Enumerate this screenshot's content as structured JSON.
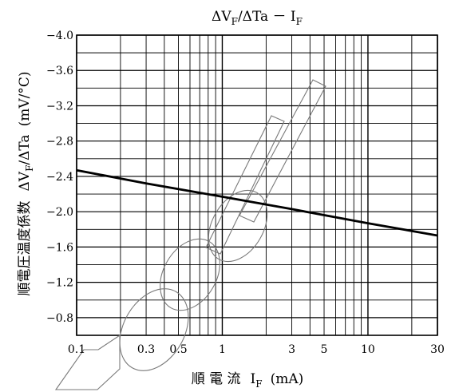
{
  "chart_data": {
    "type": "line",
    "title": "ΔV_F/ΔTa － I_F",
    "title_parts": {
      "main": "ΔV",
      "sub": "F",
      "rest": "/ΔTa － I",
      "sub2": "F"
    },
    "xlabel": "順　電　流　I_F　(mA)",
    "xlabel_parts": {
      "jp": "順 電 流",
      "var": "I",
      "sub": "F",
      "unit": "(mA)"
    },
    "ylabel": "順電圧温度係数　ΔV_F/ΔTa　(mV/°C)",
    "ylabel_parts": {
      "jp": "順電圧温度係数",
      "var": "ΔV",
      "sub": "F",
      "rest": "/ΔTa",
      "unit": "(mV/°C)"
    },
    "x_scale": "log",
    "xlim": [
      0.1,
      30
    ],
    "ylim": [
      -0.6,
      -4.0
    ],
    "x_ticks": [
      {
        "value": 0.1,
        "label": "0.1"
      },
      {
        "value": 0.3,
        "label": "0.3"
      },
      {
        "value": 0.5,
        "label": "0.5"
      },
      {
        "value": 1,
        "label": "1"
      },
      {
        "value": 3,
        "label": "3"
      },
      {
        "value": 5,
        "label": "5"
      },
      {
        "value": 10,
        "label": "10"
      },
      {
        "value": 30,
        "label": "30"
      }
    ],
    "y_ticks": [
      {
        "value": -4.0,
        "label": "−4.0"
      },
      {
        "value": -3.6,
        "label": "−3.6"
      },
      {
        "value": -3.2,
        "label": "−3.2"
      },
      {
        "value": -2.8,
        "label": "−2.8"
      },
      {
        "value": -2.4,
        "label": "−2.4"
      },
      {
        "value": -2.0,
        "label": "−2.0"
      },
      {
        "value": -1.6,
        "label": "−1.6"
      },
      {
        "value": -1.2,
        "label": "−1.2"
      },
      {
        "value": -0.8,
        "label": "−0.8"
      }
    ],
    "grid": true,
    "series": [
      {
        "x": [
          0.1,
          0.3,
          1,
          3,
          10,
          30
        ],
        "y": [
          -2.47,
          -2.32,
          -2.17,
          -2.03,
          -1.87,
          -1.73
        ]
      }
    ]
  },
  "colors": {
    "line": "#000000",
    "grid": "#000000",
    "watermark": "#7a7a7a"
  }
}
